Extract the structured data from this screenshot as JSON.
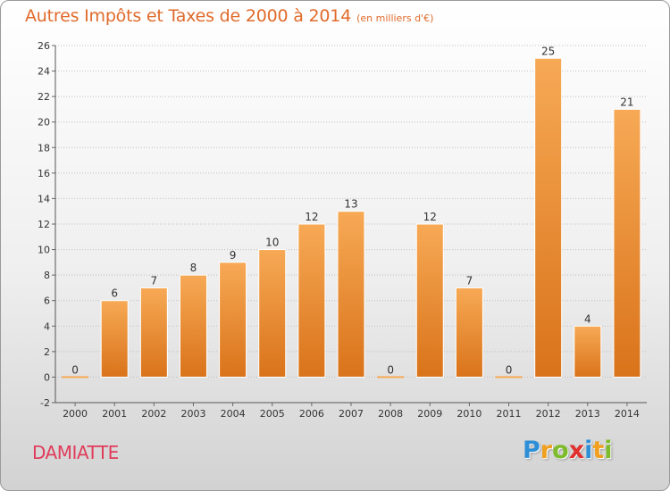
{
  "header": {
    "title": "Autres Impôts et Taxes de 2000 à 2014",
    "unit": "(en milliers d'€)"
  },
  "footer": {
    "commune": "DAMIATTE",
    "logo_letters": [
      "P",
      "r",
      "o",
      "x",
      "i",
      "t",
      "i"
    ],
    "logo_colors": [
      "#2f8fd6",
      "#f0a01e",
      "#7dbb2a",
      "#e0312f",
      "#2f8fd6",
      "#f0a01e",
      "#7dbb2a"
    ]
  },
  "colors": {
    "bar_light": "#f7a955",
    "bar_dark": "#d9731a",
    "title": "#e06a2a",
    "commune": "#e03c5a"
  },
  "chart_data": {
    "type": "bar",
    "categories": [
      "2000",
      "2001",
      "2002",
      "2003",
      "2004",
      "2005",
      "2006",
      "2007",
      "2008",
      "2009",
      "2010",
      "2011",
      "2012",
      "2013",
      "2014"
    ],
    "values": [
      0,
      6,
      7,
      8,
      9,
      10,
      12,
      13,
      0,
      12,
      7,
      0,
      25,
      4,
      21
    ],
    "data_labels": [
      "0",
      "6",
      "7",
      "8",
      "9",
      "10",
      "12",
      "13",
      "0",
      "12",
      "7",
      "0",
      "25",
      "4",
      "21"
    ],
    "title": "Autres Impôts et Taxes de 2000 à 2014",
    "xlabel": "",
    "ylabel": "",
    "ylim": [
      -2,
      26
    ],
    "yticks": [
      -2,
      0,
      2,
      4,
      6,
      8,
      10,
      12,
      14,
      16,
      18,
      20,
      22,
      24,
      26
    ],
    "grid": true
  }
}
